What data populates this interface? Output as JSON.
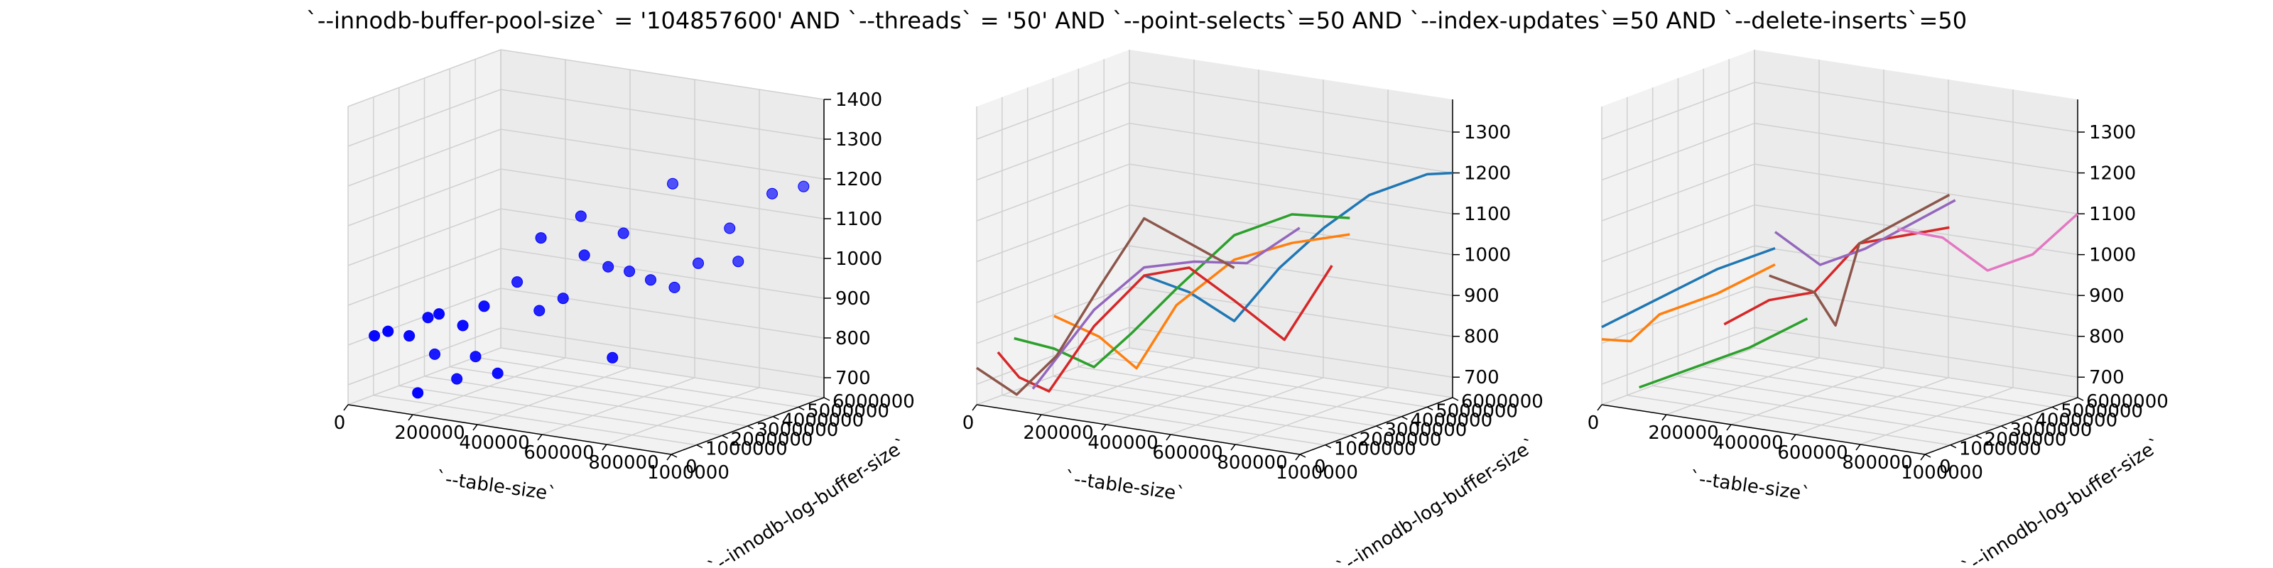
{
  "title": "`--innodb-buffer-pool-size` = '104857600' AND `--threads` = '50'  AND `--point-selects`=50 AND `--index-updates`=50 AND `--delete-inserts`=50",
  "axes": {
    "xlabel": "`--table-size`",
    "ylabel": "`--innodb-log-buffer-size`",
    "x_ticks": [
      "0",
      "200000",
      "400000",
      "600000",
      "800000",
      "1000000"
    ],
    "y_ticks": [
      "0",
      "1000000",
      "2000000",
      "3000000",
      "4000000",
      "5000000",
      "6000000"
    ]
  },
  "chart_data": [
    {
      "type": "scatter",
      "xlabel": "`--table-size`",
      "ylabel": "`--innodb-log-buffer-size`",
      "xlim": [
        0,
        1000000
      ],
      "ylim": [
        0,
        6000000
      ],
      "zlim": [
        650,
        1400
      ],
      "z_ticks": [
        700,
        800,
        900,
        1000,
        1100,
        1200,
        1300,
        1400
      ],
      "color": "#0000ff",
      "points": [
        {
          "x": 50000,
          "y": 400000,
          "z": 820
        },
        {
          "x": 100000,
          "y": 300000,
          "z": 840
        },
        {
          "x": 150000,
          "y": 500000,
          "z": 830
        },
        {
          "x": 200000,
          "y": 600000,
          "z": 880
        },
        {
          "x": 250000,
          "y": 400000,
          "z": 900
        },
        {
          "x": 300000,
          "y": 700000,
          "z": 870
        },
        {
          "x": 350000,
          "y": 900000,
          "z": 920
        },
        {
          "x": 150000,
          "y": 1500000,
          "z": 760
        },
        {
          "x": 300000,
          "y": 1200000,
          "z": 780
        },
        {
          "x": 450000,
          "y": 1800000,
          "z": 900
        },
        {
          "x": 500000,
          "y": 2100000,
          "z": 930
        },
        {
          "x": 400000,
          "y": 2500000,
          "z": 1060
        },
        {
          "x": 550000,
          "y": 2300000,
          "z": 1040
        },
        {
          "x": 600000,
          "y": 2600000,
          "z": 1010
        },
        {
          "x": 650000,
          "y": 2800000,
          "z": 1000
        },
        {
          "x": 700000,
          "y": 3000000,
          "z": 980
        },
        {
          "x": 750000,
          "y": 3300000,
          "z": 960
        },
        {
          "x": 500000,
          "y": 2800000,
          "z": 1120
        },
        {
          "x": 600000,
          "y": 3200000,
          "z": 1080
        },
        {
          "x": 800000,
          "y": 3600000,
          "z": 1020
        },
        {
          "x": 900000,
          "y": 3900000,
          "z": 1030
        },
        {
          "x": 850000,
          "y": 4200000,
          "z": 1100
        },
        {
          "x": 950000,
          "y": 4600000,
          "z": 1190
        },
        {
          "x": 1000000,
          "y": 5200000,
          "z": 1200
        },
        {
          "x": 700000,
          "y": 1500000,
          "z": 820
        },
        {
          "x": 350000,
          "y": 2200000,
          "z": 950
        },
        {
          "x": 250000,
          "y": 1100000,
          "z": 720
        },
        {
          "x": 400000,
          "y": 800000,
          "z": 760
        },
        {
          "x": 650000,
          "y": 4500000,
          "z": 1180
        },
        {
          "x": 200000,
          "y": 200000,
          "z": 700
        }
      ]
    },
    {
      "type": "line",
      "xlabel": "`--table-size`",
      "ylabel": "`--innodb-log-buffer-size`",
      "xlim": [
        0,
        1000000
      ],
      "ylim": [
        0,
        6000000
      ],
      "zlim": [
        650,
        1380
      ],
      "z_ticks": [
        700,
        800,
        900,
        1000,
        1100,
        1200,
        1300
      ],
      "series": [
        {
          "color": "#1f77b4",
          "points": [
            {
              "x": 400000,
              "y": 1500000,
              "z": 980
            },
            {
              "x": 500000,
              "y": 2000000,
              "z": 940
            },
            {
              "x": 600000,
              "y": 2500000,
              "z": 870
            },
            {
              "x": 700000,
              "y": 3000000,
              "z": 1000
            },
            {
              "x": 800000,
              "y": 3500000,
              "z": 1100
            },
            {
              "x": 900000,
              "y": 4000000,
              "z": 1180
            },
            {
              "x": 1000000,
              "y": 5000000,
              "z": 1220
            },
            {
              "x": 1000000,
              "y": 6000000,
              "z": 1200
            }
          ]
        },
        {
          "color": "#ff7f0e",
          "points": [
            {
              "x": 200000,
              "y": 500000,
              "z": 880
            },
            {
              "x": 300000,
              "y": 1000000,
              "z": 830
            },
            {
              "x": 400000,
              "y": 1200000,
              "z": 760
            },
            {
              "x": 500000,
              "y": 1500000,
              "z": 920
            },
            {
              "x": 600000,
              "y": 2500000,
              "z": 1020
            },
            {
              "x": 700000,
              "y": 3500000,
              "z": 1050
            },
            {
              "x": 800000,
              "y": 4500000,
              "z": 1060
            }
          ]
        },
        {
          "color": "#2ca02c",
          "points": [
            {
              "x": 100000,
              "y": 200000,
              "z": 820
            },
            {
              "x": 200000,
              "y": 500000,
              "z": 800
            },
            {
              "x": 300000,
              "y": 800000,
              "z": 760
            },
            {
              "x": 400000,
              "y": 1000000,
              "z": 850
            },
            {
              "x": 500000,
              "y": 1500000,
              "z": 960
            },
            {
              "x": 600000,
              "y": 2500000,
              "z": 1080
            },
            {
              "x": 700000,
              "y": 3500000,
              "z": 1120
            },
            {
              "x": 800000,
              "y": 4500000,
              "z": 1100
            }
          ]
        },
        {
          "color": "#d62728",
          "points": [
            {
              "x": 50000,
              "y": 200000,
              "z": 780
            },
            {
              "x": 100000,
              "y": 400000,
              "z": 720
            },
            {
              "x": 200000,
              "y": 300000,
              "z": 700
            },
            {
              "x": 300000,
              "y": 800000,
              "z": 860
            },
            {
              "x": 400000,
              "y": 1500000,
              "z": 980
            },
            {
              "x": 500000,
              "y": 2000000,
              "z": 1000
            },
            {
              "x": 600000,
              "y": 2500000,
              "z": 920
            },
            {
              "x": 700000,
              "y": 3200000,
              "z": 820
            },
            {
              "x": 800000,
              "y": 3800000,
              "z": 1000
            }
          ]
        },
        {
          "color": "#9467bd",
          "points": [
            {
              "x": 150000,
              "y": 300000,
              "z": 700
            },
            {
              "x": 300000,
              "y": 800000,
              "z": 900
            },
            {
              "x": 400000,
              "y": 1500000,
              "z": 1000
            },
            {
              "x": 500000,
              "y": 2200000,
              "z": 1010
            },
            {
              "x": 600000,
              "y": 3000000,
              "z": 1000
            },
            {
              "x": 700000,
              "y": 3800000,
              "z": 1080
            }
          ]
        },
        {
          "color": "#8c564b",
          "points": [
            {
              "x": 0,
              "y": 0,
              "z": 740
            },
            {
              "x": 100000,
              "y": 300000,
              "z": 680
            },
            {
              "x": 200000,
              "y": 600000,
              "z": 780
            },
            {
              "x": 300000,
              "y": 1000000,
              "z": 950
            },
            {
              "x": 400000,
              "y": 1500000,
              "z": 1120
            },
            {
              "x": 500000,
              "y": 2000000,
              "z": 1060
            },
            {
              "x": 600000,
              "y": 2500000,
              "z": 1000
            }
          ]
        }
      ]
    },
    {
      "type": "line",
      "xlabel": "`--table-size`",
      "ylabel": "`--innodb-log-buffer-size`",
      "xlim": [
        0,
        1000000
      ],
      "ylim": [
        0,
        6000000
      ],
      "zlim": [
        650,
        1380
      ],
      "z_ticks": [
        700,
        800,
        900,
        1000,
        1100,
        1200,
        1300
      ],
      "series": [
        {
          "color": "#1f77b4",
          "points": [
            {
              "x": 0,
              "y": 0,
              "z": 840
            },
            {
              "x": 100000,
              "y": 1000000,
              "z": 900
            },
            {
              "x": 200000,
              "y": 2000000,
              "z": 960
            },
            {
              "x": 300000,
              "y": 3000000,
              "z": 1000
            }
          ]
        },
        {
          "color": "#ff7f0e",
          "points": [
            {
              "x": 0,
              "y": 0,
              "z": 810
            },
            {
              "x": 50000,
              "y": 500000,
              "z": 800
            },
            {
              "x": 100000,
              "y": 1000000,
              "z": 860
            },
            {
              "x": 200000,
              "y": 2000000,
              "z": 900
            },
            {
              "x": 300000,
              "y": 3000000,
              "z": 960
            }
          ]
        },
        {
          "color": "#2ca02c",
          "points": [
            {
              "x": 100000,
              "y": 200000,
              "z": 700
            },
            {
              "x": 200000,
              "y": 1000000,
              "z": 740
            },
            {
              "x": 300000,
              "y": 2000000,
              "z": 780
            },
            {
              "x": 400000,
              "y": 3000000,
              "z": 840
            }
          ]
        },
        {
          "color": "#d62728",
          "points": [
            {
              "x": 300000,
              "y": 1000000,
              "z": 860
            },
            {
              "x": 400000,
              "y": 1500000,
              "z": 920
            },
            {
              "x": 500000,
              "y": 2000000,
              "z": 940
            },
            {
              "x": 600000,
              "y": 2500000,
              "z": 1060
            },
            {
              "x": 700000,
              "y": 3000000,
              "z": 1080
            },
            {
              "x": 800000,
              "y": 3500000,
              "z": 1100
            }
          ]
        },
        {
          "color": "#9467bd",
          "points": [
            {
              "x": 300000,
              "y": 3000000,
              "z": 1040
            },
            {
              "x": 400000,
              "y": 3500000,
              "z": 960
            },
            {
              "x": 500000,
              "y": 4000000,
              "z": 1000
            },
            {
              "x": 600000,
              "y": 4500000,
              "z": 1060
            },
            {
              "x": 700000,
              "y": 5000000,
              "z": 1120
            }
          ]
        },
        {
          "color": "#8c564b",
          "points": [
            {
              "x": 400000,
              "y": 1500000,
              "z": 980
            },
            {
              "x": 500000,
              "y": 2000000,
              "z": 940
            },
            {
              "x": 550000,
              "y": 2200000,
              "z": 860
            },
            {
              "x": 600000,
              "y": 2500000,
              "z": 1060
            },
            {
              "x": 700000,
              "y": 3000000,
              "z": 1120
            },
            {
              "x": 800000,
              "y": 3500000,
              "z": 1180
            }
          ]
        },
        {
          "color": "#e377c2",
          "points": [
            {
              "x": 600000,
              "y": 4000000,
              "z": 1060
            },
            {
              "x": 700000,
              "y": 4500000,
              "z": 1040
            },
            {
              "x": 800000,
              "y": 5000000,
              "z": 960
            },
            {
              "x": 900000,
              "y": 5500000,
              "z": 1000
            },
            {
              "x": 1000000,
              "y": 6000000,
              "z": 1100
            }
          ]
        }
      ]
    }
  ]
}
